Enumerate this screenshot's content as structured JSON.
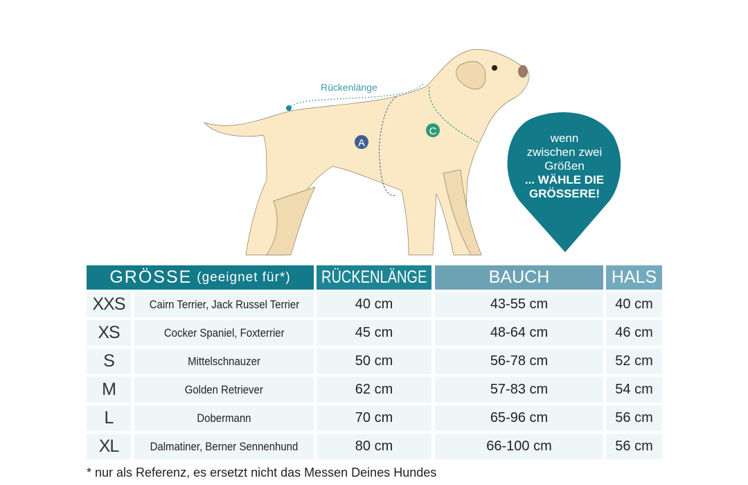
{
  "illustration": {
    "back_length_label": "Rückenlänge",
    "marker_a": "A",
    "marker_c": "C",
    "bubble": {
      "line1": "wenn",
      "line2": "zwischen zwei",
      "line3": "Größen",
      "emphasis1": "... WÄHLE DIE",
      "emphasis2": "GRÖSSERE!"
    }
  },
  "colors": {
    "header_dark": "#127a89",
    "header_mid": "#1c8493",
    "header_light": "#6da2b4",
    "row_bg": "#eef6f8",
    "dog_fill": "#fbe9c6"
  },
  "table": {
    "headers": {
      "size": "GRÖSSE",
      "size_note": "(geeignet für*)",
      "back": "RÜCKENLÄNGE",
      "belly": "BAUCH",
      "neck": "HALS"
    },
    "rows": [
      {
        "size": "XXS",
        "breeds": "Cairn Terrier, Jack Russel Terrier",
        "back": "40 cm",
        "belly": "43-55 cm",
        "neck": "40 cm"
      },
      {
        "size": "XS",
        "breeds": "Cocker Spaniel, Foxterrier",
        "back": "45 cm",
        "belly": "48-64 cm",
        "neck": "46 cm"
      },
      {
        "size": "S",
        "breeds": "Mittelschnauzer",
        "back": "50 cm",
        "belly": "56-78 cm",
        "neck": "52 cm"
      },
      {
        "size": "M",
        "breeds": "Golden Retriever",
        "back": "62 cm",
        "belly": "57-83 cm",
        "neck": "54 cm"
      },
      {
        "size": "L",
        "breeds": "Dobermann",
        "back": "70 cm",
        "belly": "65-96 cm",
        "neck": "56 cm"
      },
      {
        "size": "XL",
        "breeds": "Dalmatiner, Berner Sennenhund",
        "back": "80 cm",
        "belly": "66-100 cm",
        "neck": "56 cm"
      }
    ]
  },
  "footer": "* nur als Referenz, es ersetzt nicht das Messen Deines Hundes"
}
